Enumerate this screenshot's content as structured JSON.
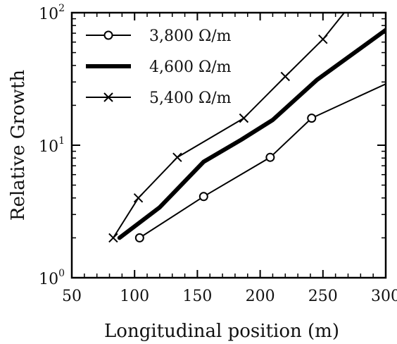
{
  "chart_data": {
    "type": "line",
    "title": "",
    "xlabel": "Longitudinal position (m)",
    "ylabel": "Relative Growth",
    "xlim": [
      50,
      300
    ],
    "ylim": [
      1,
      100
    ],
    "yscale": "log",
    "x_ticks": [
      50,
      100,
      150,
      200,
      250,
      300
    ],
    "y_ticks": [
      {
        "value": 1,
        "base": "10",
        "exp": "0"
      },
      {
        "value": 10,
        "base": "10",
        "exp": "1"
      },
      {
        "value": 100,
        "base": "10",
        "exp": "2"
      }
    ],
    "grid": false,
    "legend_position": "top-left",
    "series": [
      {
        "name": "3,800 Ω/m",
        "marker": "circle",
        "line": "thin",
        "color": "#000000",
        "points": [
          [
            104,
            2
          ],
          [
            155,
            4.1
          ],
          [
            208,
            8.1
          ],
          [
            241,
            16
          ],
          [
            300,
            29
          ]
        ],
        "marker_points": [
          [
            104,
            2
          ],
          [
            155,
            4.1
          ],
          [
            208,
            8.1
          ],
          [
            241,
            16
          ]
        ]
      },
      {
        "name": "4,600 Ω/m",
        "marker": "none",
        "line": "thick",
        "color": "#000000",
        "points": [
          [
            88,
            2
          ],
          [
            120,
            3.4
          ],
          [
            155,
            7.5
          ],
          [
            185,
            11
          ],
          [
            210,
            15.5
          ],
          [
            245,
            31
          ],
          [
            300,
            74
          ]
        ],
        "marker_points": []
      },
      {
        "name": "5,400 Ω/m",
        "marker": "x",
        "line": "thin",
        "color": "#000000",
        "points": [
          [
            83,
            2
          ],
          [
            103,
            4
          ],
          [
            134,
            8.1
          ],
          [
            187,
            16
          ],
          [
            220,
            33
          ],
          [
            250,
            63
          ],
          [
            267,
            100
          ]
        ],
        "marker_points": [
          [
            83,
            2
          ],
          [
            103,
            4
          ],
          [
            134,
            8.1
          ],
          [
            187,
            16
          ],
          [
            220,
            33
          ],
          [
            250,
            63
          ]
        ]
      }
    ]
  }
}
